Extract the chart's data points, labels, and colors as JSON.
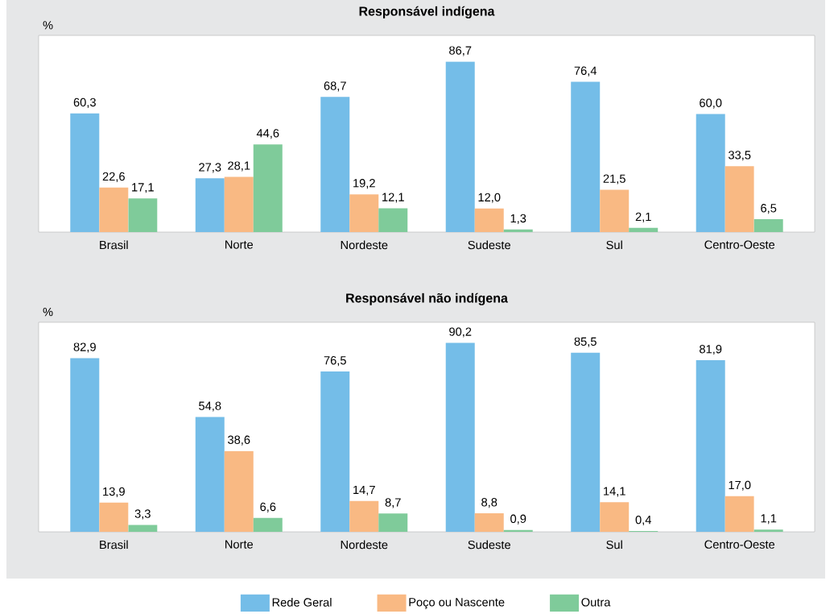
{
  "chart_data": [
    {
      "type": "bar",
      "title": "Responsável indígena",
      "ylabel": "%",
      "categories": [
        "Brasil",
        "Norte",
        "Nordeste",
        "Sudeste",
        "Sul",
        "Centro-Oeste"
      ],
      "ylim": [
        0,
        100
      ],
      "legend": false,
      "series": [
        {
          "color": "#74bde8",
          "values": [
            60.3,
            27.3,
            68.7,
            86.7,
            76.4,
            60.0
          ],
          "value_labels": [
            "60,3",
            "27,3",
            "68,7",
            "86,7",
            "76,4",
            "60,0"
          ]
        },
        {
          "color": "#f9b983",
          "values": [
            22.6,
            28.1,
            19.2,
            12.0,
            21.5,
            33.5
          ],
          "value_labels": [
            "22,6",
            "28,1",
            "19,2",
            "12,0",
            "21,5",
            "33,5"
          ]
        },
        {
          "color": "#7fcb9a",
          "values": [
            17.1,
            44.6,
            12.1,
            1.3,
            2.1,
            6.5
          ],
          "value_labels": [
            "17,1",
            "44,6",
            "12,1",
            "1,3",
            "2,1",
            "6,5"
          ]
        }
      ]
    },
    {
      "type": "bar",
      "title": "Responsável não indígena",
      "ylabel": "%",
      "categories": [
        "Brasil",
        "Norte",
        "Nordeste",
        "Sudeste",
        "Sul",
        "Centro-Oeste"
      ],
      "ylim": [
        0,
        100
      ],
      "legend": "bottom",
      "series": [
        {
          "name": "Rede Geral",
          "color": "#74bde8",
          "values": [
            82.9,
            54.8,
            76.5,
            90.2,
            85.5,
            81.9
          ],
          "value_labels": [
            "82,9",
            "54,8",
            "76,5",
            "90,2",
            "85,5",
            "81,9"
          ]
        },
        {
          "name": "Poço ou Nascente",
          "color": "#f9b983",
          "values": [
            13.9,
            38.6,
            14.7,
            8.8,
            14.1,
            17.0
          ],
          "value_labels": [
            "13,9",
            "38,6",
            "14,7",
            "8,8",
            "14,1",
            "17,0"
          ]
        },
        {
          "name": "Outra",
          "color": "#7fcb9a",
          "values": [
            3.3,
            6.6,
            8.7,
            0.9,
            0.4,
            1.1
          ],
          "value_labels": [
            "3,3",
            "6,6",
            "8,7",
            "0,9",
            "0,4",
            "1,1"
          ]
        }
      ]
    }
  ]
}
